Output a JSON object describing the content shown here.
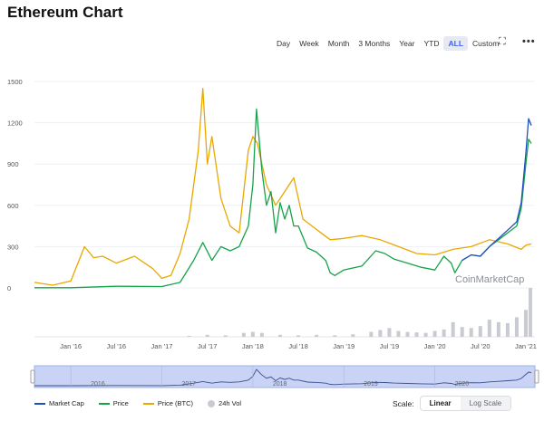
{
  "page": {
    "title": "Ethereum Chart",
    "watermark": "CoinMarketCap"
  },
  "range_buttons": [
    {
      "label": "Day",
      "active": false
    },
    {
      "label": "Week",
      "active": false
    },
    {
      "label": "Month",
      "active": false
    },
    {
      "label": "3 Months",
      "active": false
    },
    {
      "label": "Year",
      "active": false
    },
    {
      "label": "YTD",
      "active": false
    },
    {
      "label": "ALL",
      "active": true
    },
    {
      "label": "Custom",
      "active": false
    }
  ],
  "toolbar": {
    "fullscreen_icon": "fullscreen-icon",
    "more_icon": "more-icon",
    "fullscreen_glyph": "⛶",
    "more_glyph": "•••"
  },
  "legend": [
    {
      "label": "Market Cap",
      "color": "#1f4fbf"
    },
    {
      "label": "Price",
      "color": "#16a34a"
    },
    {
      "label": "Price (BTC)",
      "color": "#e8a800"
    },
    {
      "label": "24h Vol",
      "color": "#c9cbd3"
    }
  ],
  "scale": {
    "label": "Scale:",
    "options": [
      "Linear",
      "Log Scale"
    ],
    "active": "Linear"
  },
  "chart_data": {
    "type": "line",
    "title": "Ethereum Chart",
    "yticks": [
      0,
      300,
      600,
      900,
      1200,
      1500
    ],
    "ylim": [
      0,
      1500
    ],
    "xlim": [
      2015.6,
      2021.1
    ],
    "xticks": [
      "Jan '16",
      "Jul '16",
      "Jan '17",
      "Jul '17",
      "Jan '18",
      "Jul '18",
      "Jan '19",
      "Jul '19",
      "Jan '20",
      "Jul '20",
      "Jan '21"
    ],
    "xtick_values": [
      2016.0,
      2016.5,
      2017.0,
      2017.5,
      2018.0,
      2018.5,
      2019.0,
      2019.5,
      2020.0,
      2020.5,
      2021.0
    ],
    "navigator_years": [
      "2016",
      "2017",
      "2018",
      "2019",
      "2020"
    ],
    "navigator_year_values": [
      2016.0,
      2017.0,
      2018.0,
      2019.0,
      2020.0
    ],
    "series": [
      {
        "name": "Price",
        "color": "#16a34a",
        "x": [
          2015.6,
          2016.0,
          2016.5,
          2017.0,
          2017.2,
          2017.35,
          2017.45,
          2017.55,
          2017.65,
          2017.75,
          2017.85,
          2017.95,
          2018.0,
          2018.04,
          2018.1,
          2018.15,
          2018.2,
          2018.25,
          2018.3,
          2018.35,
          2018.4,
          2018.45,
          2018.5,
          2018.6,
          2018.7,
          2018.8,
          2018.85,
          2018.9,
          2019.0,
          2019.2,
          2019.35,
          2019.45,
          2019.55,
          2019.7,
          2019.85,
          2020.0,
          2020.1,
          2020.18,
          2020.22,
          2020.3,
          2020.4,
          2020.5,
          2020.6,
          2020.7,
          2020.8,
          2020.9,
          2020.95,
          2021.0,
          2021.03,
          2021.06
        ],
        "values": [
          1,
          1,
          12,
          10,
          40,
          200,
          330,
          200,
          300,
          270,
          300,
          450,
          750,
          1300,
          850,
          600,
          700,
          400,
          620,
          500,
          600,
          450,
          450,
          290,
          260,
          200,
          110,
          90,
          130,
          160,
          270,
          250,
          210,
          180,
          150,
          130,
          230,
          180,
          110,
          200,
          240,
          230,
          300,
          350,
          400,
          450,
          580,
          900,
          1080,
          1050
        ]
      },
      {
        "name": "Market Cap",
        "color": "#1f4fbf",
        "x": [
          2020.3,
          2020.4,
          2020.5,
          2020.6,
          2020.7,
          2020.8,
          2020.9,
          2020.95,
          2021.0,
          2021.03,
          2021.06
        ],
        "values": [
          200,
          240,
          230,
          300,
          360,
          420,
          480,
          620,
          980,
          1230,
          1180
        ]
      },
      {
        "name": "Price (BTC)",
        "color": "#e8a800",
        "x": [
          2015.6,
          2015.8,
          2016.0,
          2016.15,
          2016.25,
          2016.35,
          2016.5,
          2016.7,
          2016.9,
          2017.0,
          2017.1,
          2017.2,
          2017.3,
          2017.4,
          2017.45,
          2017.5,
          2017.55,
          2017.65,
          2017.75,
          2017.85,
          2017.95,
          2018.0,
          2018.05,
          2018.15,
          2018.25,
          2018.35,
          2018.45,
          2018.55,
          2018.65,
          2018.75,
          2018.85,
          2019.0,
          2019.2,
          2019.4,
          2019.6,
          2019.8,
          2020.0,
          2020.2,
          2020.4,
          2020.6,
          2020.8,
          2020.95,
          2021.0,
          2021.06
        ],
        "values": [
          40,
          20,
          50,
          300,
          220,
          230,
          180,
          230,
          140,
          70,
          90,
          250,
          500,
          1000,
          1450,
          900,
          1100,
          650,
          450,
          400,
          1000,
          1100,
          1050,
          750,
          600,
          700,
          800,
          500,
          450,
          400,
          350,
          360,
          380,
          350,
          300,
          250,
          240,
          280,
          300,
          350,
          320,
          280,
          310,
          320
        ]
      }
    ],
    "volume": {
      "name": "24h Vol",
      "color": "#c9cbd3",
      "x": [
        2017.3,
        2017.5,
        2017.7,
        2017.9,
        2018.0,
        2018.1,
        2018.3,
        2018.5,
        2018.7,
        2018.9,
        2019.1,
        2019.3,
        2019.4,
        2019.5,
        2019.6,
        2019.7,
        2019.8,
        2019.9,
        2020.0,
        2020.1,
        2020.2,
        2020.3,
        2020.4,
        2020.5,
        2020.6,
        2020.7,
        2020.8,
        2020.9,
        2021.0,
        2021.05
      ],
      "values": [
        2,
        4,
        3,
        8,
        10,
        8,
        4,
        3,
        4,
        3,
        5,
        10,
        14,
        18,
        12,
        10,
        9,
        8,
        12,
        15,
        30,
        20,
        18,
        22,
        35,
        30,
        28,
        40,
        55,
        100
      ]
    }
  }
}
